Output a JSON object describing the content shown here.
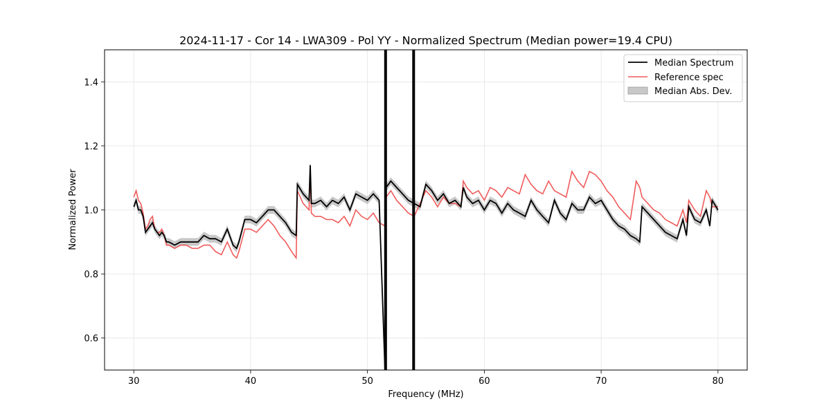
{
  "chart_data": {
    "type": "line",
    "title": "2024-11-17 - Cor 14 - LWA309 - Pol YY - Normalized Spectrum (Median power=19.4 CPU)",
    "xlabel": "Frequency (MHz)",
    "ylabel": "Normalized Power",
    "xlim": [
      27.5,
      82.5
    ],
    "ylim": [
      0.5,
      1.5
    ],
    "xticks": [
      30,
      40,
      50,
      60,
      70,
      80
    ],
    "yticks": [
      0.6,
      0.8,
      1.0,
      1.2,
      1.4
    ],
    "grid": true,
    "legend_position": "upper right",
    "legend": [
      "Median Spectrum",
      "Reference spec",
      "Median Abs. Dev."
    ],
    "colors": {
      "median": "#000000",
      "reference": "#f05a5a",
      "mad_fill": "#b0b0b0",
      "grid": "#e3e3e3"
    },
    "series": [
      {
        "name": "Median Spectrum",
        "x": [
          30.0,
          30.2,
          30.4,
          30.6,
          30.8,
          31.0,
          31.2,
          31.4,
          31.6,
          31.8,
          32.0,
          32.2,
          32.4,
          32.6,
          32.8,
          33.0,
          33.5,
          34.0,
          34.5,
          35.0,
          35.5,
          36.0,
          36.5,
          37.0,
          37.5,
          38.0,
          38.5,
          38.8,
          39.0,
          39.5,
          40.0,
          40.5,
          41.0,
          41.5,
          42.0,
          42.5,
          43.0,
          43.5,
          43.9,
          44.0,
          44.5,
          45.0,
          45.1,
          45.2,
          45.5,
          46.0,
          46.5,
          47.0,
          47.5,
          48.0,
          48.5,
          49.0,
          49.5,
          50.0,
          50.5,
          51.0,
          51.5,
          51.6,
          52.0,
          52.5,
          53.0,
          53.5,
          54.0,
          54.5,
          55.0,
          55.5,
          56.0,
          56.5,
          57.0,
          57.5,
          58.0,
          58.2,
          58.5,
          59.0,
          59.5,
          60.0,
          60.5,
          61.0,
          61.5,
          62.0,
          62.5,
          63.0,
          63.5,
          64.0,
          64.5,
          65.0,
          65.5,
          66.0,
          66.5,
          67.0,
          67.5,
          68.0,
          68.5,
          69.0,
          69.5,
          70.0,
          70.5,
          71.0,
          71.5,
          72.0,
          72.5,
          73.0,
          73.3,
          73.5,
          74.0,
          74.5,
          75.0,
          75.5,
          76.0,
          76.5,
          77.0,
          77.3,
          77.5,
          78.0,
          78.5,
          79.0,
          79.3,
          79.5,
          80.0
        ],
        "values": [
          1.01,
          1.03,
          1.0,
          1.0,
          0.98,
          0.93,
          0.94,
          0.95,
          0.96,
          0.94,
          0.93,
          0.92,
          0.93,
          0.92,
          0.9,
          0.9,
          0.89,
          0.9,
          0.9,
          0.9,
          0.9,
          0.92,
          0.91,
          0.91,
          0.9,
          0.94,
          0.89,
          0.88,
          0.9,
          0.97,
          0.97,
          0.96,
          0.98,
          1.0,
          1.0,
          0.98,
          0.96,
          0.93,
          0.92,
          1.08,
          1.05,
          1.03,
          1.14,
          1.02,
          1.02,
          1.03,
          1.01,
          1.03,
          1.02,
          1.04,
          1.0,
          1.05,
          1.04,
          1.03,
          1.05,
          1.03,
          0.5,
          1.07,
          1.09,
          1.07,
          1.05,
          1.03,
          1.02,
          1.01,
          1.08,
          1.06,
          1.03,
          1.05,
          1.02,
          1.03,
          1.01,
          1.07,
          1.04,
          1.02,
          1.03,
          1.0,
          1.03,
          1.02,
          0.99,
          1.02,
          1.0,
          0.99,
          0.98,
          1.03,
          1.0,
          0.98,
          0.96,
          1.03,
          0.99,
          0.97,
          1.02,
          1.0,
          1.0,
          1.04,
          1.02,
          1.03,
          1.0,
          0.97,
          0.95,
          0.94,
          0.92,
          0.91,
          0.9,
          1.01,
          0.99,
          0.97,
          0.95,
          0.93,
          0.92,
          0.91,
          0.97,
          0.92,
          1.01,
          0.97,
          0.96,
          1.0,
          0.95,
          1.03,
          1.0
        ],
        "spike_x": [
          51.55,
          53.95
        ],
        "spike_range": [
          0.5,
          1.5
        ]
      },
      {
        "name": "Reference spec",
        "x": [
          30.0,
          30.2,
          30.4,
          30.6,
          30.8,
          31.0,
          31.2,
          31.4,
          31.6,
          31.8,
          32.0,
          32.2,
          32.4,
          32.6,
          32.8,
          33.0,
          33.5,
          34.0,
          34.5,
          35.0,
          35.5,
          36.0,
          36.5,
          37.0,
          37.5,
          38.0,
          38.5,
          38.8,
          39.0,
          39.5,
          40.0,
          40.5,
          41.0,
          41.5,
          42.0,
          42.5,
          43.0,
          43.5,
          43.9,
          44.0,
          44.5,
          45.0,
          45.1,
          45.2,
          45.5,
          46.0,
          46.5,
          47.0,
          47.5,
          48.0,
          48.5,
          49.0,
          49.5,
          50.0,
          50.5,
          51.0,
          51.5,
          51.6,
          52.0,
          52.5,
          53.0,
          53.5,
          54.0,
          54.5,
          55.0,
          55.5,
          56.0,
          56.5,
          57.0,
          57.5,
          58.0,
          58.2,
          58.5,
          59.0,
          59.5,
          60.0,
          60.5,
          61.0,
          61.5,
          62.0,
          62.5,
          63.0,
          63.5,
          64.0,
          64.5,
          65.0,
          65.5,
          66.0,
          66.5,
          67.0,
          67.5,
          68.0,
          68.5,
          69.0,
          69.5,
          70.0,
          70.5,
          71.0,
          71.5,
          72.0,
          72.5,
          73.0,
          73.3,
          73.5,
          74.0,
          74.5,
          75.0,
          75.5,
          76.0,
          76.5,
          77.0,
          77.3,
          77.5,
          78.0,
          78.5,
          79.0,
          79.3,
          79.5,
          80.0
        ],
        "values": [
          1.04,
          1.06,
          1.03,
          1.02,
          0.99,
          0.94,
          0.95,
          0.97,
          0.98,
          0.94,
          0.93,
          0.93,
          0.94,
          0.92,
          0.89,
          0.89,
          0.88,
          0.89,
          0.89,
          0.88,
          0.88,
          0.89,
          0.89,
          0.87,
          0.86,
          0.9,
          0.86,
          0.85,
          0.87,
          0.94,
          0.94,
          0.93,
          0.95,
          0.97,
          0.95,
          0.92,
          0.9,
          0.87,
          0.85,
          1.06,
          1.02,
          1.0,
          1.12,
          0.99,
          0.98,
          0.98,
          0.97,
          0.97,
          0.96,
          0.98,
          0.95,
          1.0,
          0.98,
          0.97,
          0.99,
          0.96,
          0.95,
          1.04,
          1.06,
          1.03,
          1.01,
          0.99,
          0.98,
          1.02,
          1.06,
          1.04,
          1.01,
          1.04,
          1.02,
          1.02,
          1.01,
          1.09,
          1.07,
          1.05,
          1.06,
          1.03,
          1.07,
          1.06,
          1.04,
          1.07,
          1.06,
          1.05,
          1.11,
          1.08,
          1.06,
          1.05,
          1.09,
          1.06,
          1.05,
          1.04,
          1.12,
          1.09,
          1.07,
          1.12,
          1.11,
          1.09,
          1.06,
          1.04,
          1.01,
          0.99,
          0.97,
          1.09,
          1.07,
          1.04,
          1.02,
          1.0,
          0.99,
          0.97,
          0.96,
          0.95,
          1.0,
          0.96,
          1.03,
          1.0,
          0.98,
          1.06,
          1.04,
          1.01,
          1.01
        ]
      },
      {
        "name": "Median Abs. Dev.",
        "half_width": 0.012
      }
    ]
  }
}
